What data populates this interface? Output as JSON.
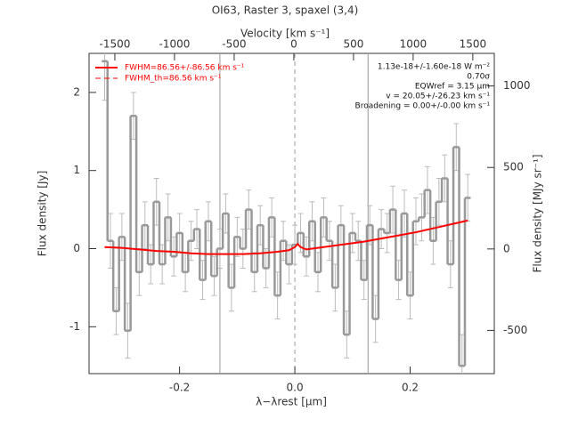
{
  "chart_data": {
    "type": "step",
    "title": "OI63, Raster 3, spaxel (3,4)",
    "x2label": "Velocity [km s⁻¹]",
    "xlabel": "λ−λrest [μm]",
    "ylabel": "Flux density [Jy]",
    "y2label": "Flux density [MJy sr⁻¹]",
    "xlim": [
      -0.357,
      0.346
    ],
    "xticks": [
      -0.2,
      {
        "value": 0,
        "label": "0.0"
      },
      0.2
    ],
    "ylim": [
      -1.6,
      2.5
    ],
    "yticks": [
      -1,
      0,
      1,
      2
    ],
    "x2lim": [
      -1716,
      1680
    ],
    "x2ticks": [
      -1500,
      -1000,
      -500,
      0,
      500,
      1000,
      1500
    ],
    "y2lim": [
      -765,
      1200
    ],
    "y2ticks": [
      -500,
      0,
      500,
      1000
    ],
    "color": "#999999",
    "x": [
      -0.33,
      -0.32,
      -0.31,
      -0.3,
      -0.29,
      -0.28,
      -0.27,
      -0.26,
      -0.25,
      -0.24,
      -0.23,
      -0.22,
      -0.21,
      -0.2,
      -0.19,
      -0.18,
      -0.17,
      -0.16,
      -0.15,
      -0.14,
      -0.13,
      -0.12,
      -0.11,
      -0.1,
      -0.09,
      -0.08,
      -0.07,
      -0.06,
      -0.05,
      -0.04,
      -0.03,
      -0.02,
      -0.01,
      0.0,
      0.01,
      0.02,
      0.03,
      0.04,
      0.05,
      0.06,
      0.07,
      0.08,
      0.09,
      0.1,
      0.11,
      0.12,
      0.13,
      0.14,
      0.15,
      0.16,
      0.17,
      0.18,
      0.19,
      0.2,
      0.21,
      0.22,
      0.23,
      0.24,
      0.25,
      0.26,
      0.27,
      0.28,
      0.29,
      0.3
    ],
    "values": [
      2.4,
      0.1,
      -0.8,
      0.15,
      -1.05,
      1.7,
      -0.3,
      0.3,
      -0.2,
      0.6,
      -0.2,
      0.4,
      -0.1,
      0.2,
      -0.3,
      0.1,
      0.25,
      -0.4,
      0.35,
      -0.35,
      0.0,
      0.45,
      -0.5,
      0.15,
      0.0,
      0.5,
      -0.3,
      0.3,
      -0.25,
      0.4,
      -0.6,
      0.1,
      -0.2,
      0.05,
      0.2,
      -0.1,
      0.35,
      -0.3,
      0.4,
      0.1,
      -0.5,
      0.3,
      -1.1,
      0.2,
      0.1,
      -0.4,
      0.3,
      -0.9,
      0.25,
      0.2,
      0.5,
      -0.4,
      0.45,
      -0.6,
      0.35,
      0.4,
      0.75,
      0.1,
      0.6,
      0.9,
      -0.2,
      1.3,
      -1.5,
      0.65
    ],
    "errors": [
      0.5,
      0.35,
      0.3,
      0.3,
      0.35,
      0.3,
      0.3,
      0.3,
      0.25,
      0.3,
      0.25,
      0.3,
      0.25,
      0.25,
      0.25,
      0.25,
      0.25,
      0.25,
      0.25,
      0.25,
      0.25,
      0.25,
      0.3,
      0.25,
      0.25,
      0.25,
      0.25,
      0.25,
      0.25,
      0.25,
      0.3,
      0.25,
      0.25,
      0.25,
      0.25,
      0.25,
      0.25,
      0.25,
      0.25,
      0.25,
      0.3,
      0.25,
      0.3,
      0.25,
      0.25,
      0.25,
      0.25,
      0.3,
      0.25,
      0.25,
      0.3,
      0.25,
      0.3,
      0.3,
      0.3,
      0.3,
      0.3,
      0.3,
      0.3,
      0.3,
      0.3,
      0.3,
      0.4,
      0.3
    ],
    "fit": {
      "color": "#ff0000",
      "x": [
        -0.33,
        -0.3,
        -0.27,
        -0.24,
        -0.21,
        -0.18,
        -0.15,
        -0.12,
        -0.09,
        -0.06,
        -0.03,
        -0.01,
        0.0,
        0.005,
        0.01,
        0.02,
        0.03,
        0.06,
        0.09,
        0.12,
        0.15,
        0.18,
        0.21,
        0.24,
        0.27,
        0.3
      ],
      "values": [
        0.02,
        0.01,
        -0.01,
        -0.03,
        -0.04,
        -0.06,
        -0.07,
        -0.07,
        -0.07,
        -0.06,
        -0.04,
        -0.02,
        0.02,
        0.06,
        0.02,
        -0.01,
        0.0,
        0.03,
        0.06,
        0.09,
        0.13,
        0.17,
        0.21,
        0.26,
        0.31,
        0.36
      ]
    },
    "vlines": [
      {
        "x": -0.13,
        "dash": false
      },
      {
        "x": 0,
        "dash": true
      },
      {
        "x": 0.127,
        "dash": false
      }
    ],
    "legend": [
      {
        "name": "FWHM=86.56+/-86.56 km s⁻¹",
        "color": "#ff0000",
        "dash": false
      },
      {
        "name": "FWHM_th=86.56 km s⁻¹",
        "color": "#ff0000",
        "dash": true
      }
    ],
    "annotations": [
      "1.13e-18+/-1.60e-18 W m⁻²",
      "0.70σ",
      "EQWref = 3.15 μm",
      "v = 20.05+/-26.23 km s⁻¹",
      "Broadening = 0.00+/-0.00 km s⁻¹"
    ]
  }
}
